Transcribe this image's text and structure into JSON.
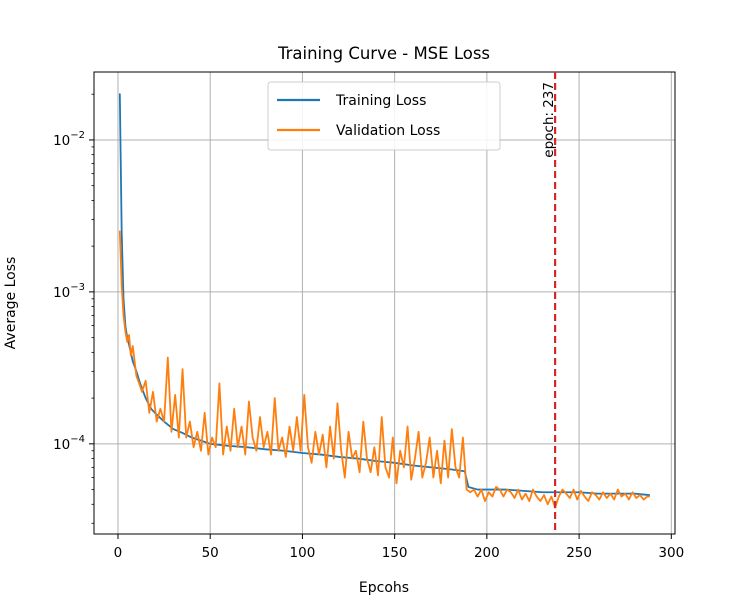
{
  "chart_data": {
    "type": "line",
    "title": "Training Curve - MSE Loss",
    "xlabel": "Epcohs",
    "ylabel": "Average Loss",
    "xlim": [
      -13,
      302
    ],
    "ylim": [
      2.55e-05,
      0.028
    ],
    "yscale": "log",
    "grid": true,
    "legend_position": "top-center",
    "x_ticks": [
      0,
      50,
      100,
      150,
      200,
      250,
      300
    ],
    "x_tick_labels": [
      "0",
      "50",
      "100",
      "150",
      "200",
      "250",
      "300"
    ],
    "y_ticks": [
      0.01,
      0.001,
      0.0001
    ],
    "y_tick_labels": [
      {
        "base": "10",
        "exp": "−2"
      },
      {
        "base": "10",
        "exp": "−3"
      },
      {
        "base": "10",
        "exp": "−4"
      }
    ],
    "series": [
      {
        "name": "Training Loss",
        "color": "#1f77b4",
        "x": [
          1,
          2,
          3,
          4,
          5,
          6,
          8,
          10,
          12,
          15,
          18,
          20,
          25,
          30,
          35,
          40,
          45,
          50,
          60,
          70,
          80,
          90,
          100,
          110,
          120,
          130,
          140,
          150,
          160,
          170,
          180,
          188,
          190,
          195,
          200,
          210,
          220,
          230,
          237,
          240,
          250,
          260,
          270,
          280,
          288
        ],
        "values": [
          0.02,
          0.0025,
          0.0009,
          0.0006,
          0.0005,
          0.00045,
          0.00035,
          0.0003,
          0.00025,
          0.0002,
          0.00017,
          0.00016,
          0.00014,
          0.000125,
          0.000118,
          0.00011,
          0.000105,
          0.0001,
          9.7e-05,
          9.5e-05,
          9.2e-05,
          9e-05,
          8.7e-05,
          8.5e-05,
          8.2e-05,
          8e-05,
          7.7e-05,
          7.5e-05,
          7.2e-05,
          7e-05,
          6.8e-05,
          6.6e-05,
          5.2e-05,
          5e-05,
          5e-05,
          5e-05,
          4.9e-05,
          4.8e-05,
          4.8e-05,
          4.8e-05,
          4.8e-05,
          4.7e-05,
          4.7e-05,
          4.7e-05,
          4.6e-05
        ]
      },
      {
        "name": "Validation Loss",
        "color": "#ff7f0e",
        "x": [
          1,
          2,
          3,
          4,
          5,
          6,
          7,
          8,
          10,
          12,
          13,
          15,
          17,
          19,
          21,
          23,
          25,
          27,
          29,
          31,
          33,
          35,
          37,
          39,
          41,
          43,
          45,
          47,
          49,
          51,
          53,
          55,
          57,
          59,
          61,
          63,
          65,
          67,
          69,
          71,
          73,
          75,
          77,
          79,
          81,
          83,
          85,
          87,
          89,
          91,
          93,
          95,
          97,
          99,
          101,
          103,
          105,
          107,
          109,
          111,
          113,
          115,
          117,
          119,
          121,
          123,
          125,
          127,
          129,
          131,
          133,
          135,
          137,
          139,
          141,
          143,
          145,
          147,
          149,
          151,
          153,
          155,
          157,
          159,
          161,
          163,
          165,
          167,
          169,
          171,
          173,
          175,
          177,
          179,
          181,
          183,
          185,
          187,
          189,
          191,
          193,
          195,
          197,
          199,
          201,
          203,
          205,
          207,
          209,
          211,
          213,
          215,
          217,
          219,
          221,
          223,
          225,
          227,
          229,
          231,
          233,
          235,
          237,
          239,
          241,
          243,
          245,
          247,
          249,
          251,
          253,
          255,
          257,
          259,
          261,
          263,
          265,
          267,
          269,
          271,
          273,
          275,
          277,
          279,
          281,
          283,
          285,
          287,
          288
        ],
        "values": [
          0.0025,
          0.0011,
          0.0007,
          0.00055,
          0.00047,
          0.00052,
          0.00038,
          0.00044,
          0.00028,
          0.00024,
          0.00022,
          0.00026,
          0.00016,
          0.00022,
          0.00014,
          0.00017,
          0.00014,
          0.00037,
          0.00012,
          0.00021,
          0.00011,
          0.00031,
          0.00011,
          0.00014,
          9.5e-05,
          0.00012,
          9e-05,
          0.00016,
          8.5e-05,
          0.00011,
          9.5e-05,
          0.00025,
          8.5e-05,
          0.00013,
          9e-05,
          0.00017,
          9.5e-05,
          0.00013,
          8.5e-05,
          0.00019,
          0.00011,
          9e-05,
          0.00015,
          9.5e-05,
          0.00012,
          8.5e-05,
          0.0002,
          9e-05,
          0.00011,
          8.2e-05,
          0.00013,
          9e-05,
          0.00015,
          9e-05,
          0.00021,
          9.5e-05,
          7.5e-05,
          0.00012,
          8.5e-05,
          0.000115,
          7e-05,
          0.00013,
          8e-05,
          0.000185,
          9e-05,
          6e-05,
          0.00012,
          8e-05,
          9e-05,
          6.5e-05,
          0.00014,
          8e-05,
          6.5e-05,
          9.5e-05,
          6.2e-05,
          0.00015,
          7e-05,
          6e-05,
          0.00011,
          5.5e-05,
          9e-05,
          7e-05,
          0.00013,
          5.8e-05,
          8e-05,
          0.00012,
          6e-05,
          7.5e-05,
          0.00011,
          6e-05,
          9e-05,
          5.5e-05,
          0.000105,
          6e-05,
          0.000125,
          7e-05,
          6e-05,
          0.00011,
          5e-05,
          4.8e-05,
          5e-05,
          4.5e-05,
          5e-05,
          4.2e-05,
          4.8e-05,
          4.5e-05,
          5.2e-05,
          5e-05,
          4.5e-05,
          5e-05,
          4.8e-05,
          4.4e-05,
          5e-05,
          4.3e-05,
          4.7e-05,
          4.2e-05,
          5e-05,
          4.5e-05,
          4.2e-05,
          4.6e-05,
          4e-05,
          4.5e-05,
          3.8e-05,
          4.5e-05,
          5e-05,
          4.7e-05,
          4.4e-05,
          5e-05,
          4.3e-05,
          4.9e-05,
          4.5e-05,
          4.2e-05,
          4.8e-05,
          4.6e-05,
          4.3e-05,
          4.8e-05,
          4.4e-05,
          4.7e-05,
          4.3e-05,
          5e-05,
          4.5e-05,
          4.7e-05,
          4.3e-05,
          4.8e-05,
          4.4e-05,
          4.6e-05,
          4.3e-05,
          4.5e-05,
          4.5e-05
        ]
      }
    ],
    "annotations": [
      {
        "type": "vline",
        "x": 237,
        "color": "#d62728",
        "style": "dashed",
        "label": "epoch: 237"
      }
    ]
  }
}
